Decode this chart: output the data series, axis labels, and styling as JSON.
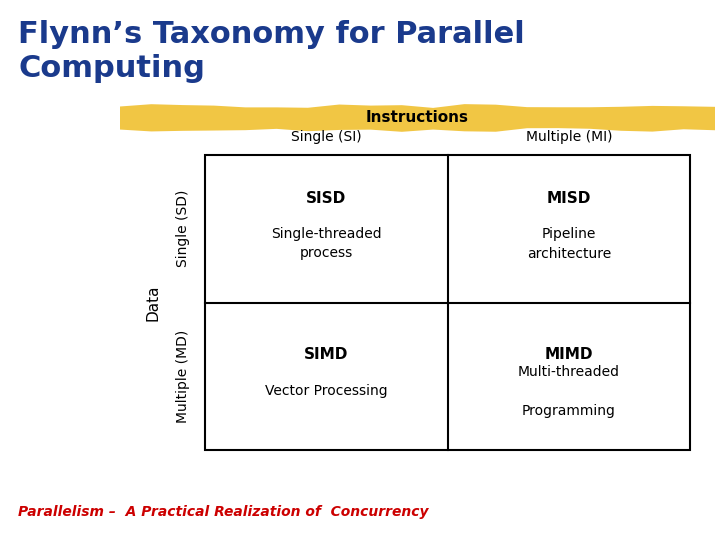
{
  "title_line1": "Flynn’s Taxonomy for Parallel",
  "title_line2": "Computing",
  "title_color": "#1a3a8c",
  "title_fontsize": 22,
  "instructions_label": "Instructions",
  "instructions_color": "#000000",
  "instructions_fontsize": 11,
  "highlight_color": "#f0c030",
  "col_labels": [
    "Single (SI)",
    "Multiple (MI)"
  ],
  "col_label_fontsize": 10,
  "row_labels": [
    "Single (SD)",
    "Multiple (MD)"
  ],
  "data_label": "Data",
  "row_label_fontsize": 10,
  "cells": [
    {
      "acronym": "SISD",
      "desc": "Single-threaded\nprocess"
    },
    {
      "acronym": "MISD",
      "desc": "Pipeline\narchitecture"
    },
    {
      "acronym": "SIMD",
      "desc": "Vector Processing"
    },
    {
      "acronym": "MIMD",
      "desc": "Multi-threaded\n\nProgramming"
    }
  ],
  "acronym_fontsize": 11,
  "desc_fontsize": 10,
  "cell_text_color": "#000000",
  "grid_color": "#000000",
  "grid_lw": 1.5,
  "footer_text": "Parallelism –  A Practical Realization of  Concurrency",
  "footer_color": "#cc0000",
  "footer_fontsize": 10,
  "bg_color": "#ffffff"
}
